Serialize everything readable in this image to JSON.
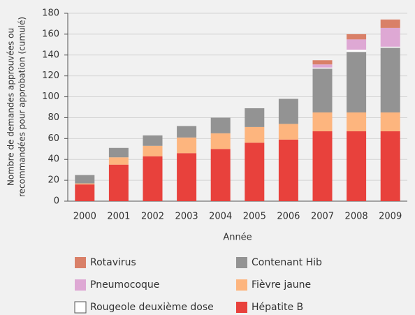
{
  "chart_data": {
    "type": "stacked_bar",
    "xlabel": "Année",
    "ylabel": [
      "Nombre de demandes approuvées ou",
      "recommandées pour approbation (cumulé)"
    ],
    "categories": [
      "2000",
      "2001",
      "2002",
      "2003",
      "2004",
      "2005",
      "2006",
      "2007",
      "2008",
      "2009"
    ],
    "series": [
      {
        "name": "Hépatite B",
        "color": "#e8413c",
        "values": [
          16,
          35,
          43,
          46,
          50,
          56,
          59,
          67,
          67,
          67
        ]
      },
      {
        "name": "Fièvre jaune",
        "color": "#fdb57e",
        "values": [
          1,
          7,
          10,
          15,
          15,
          15,
          15,
          18,
          18,
          18
        ]
      },
      {
        "name": "Contenant Hib",
        "color": "#939393",
        "values": [
          8,
          9,
          10,
          11,
          15,
          18,
          24,
          42,
          58,
          62
        ]
      },
      {
        "name": "Rougeole deuxième dose",
        "color": "#ffffff",
        "values": [
          0,
          0,
          0,
          0,
          0,
          0,
          0,
          1,
          2,
          1
        ]
      },
      {
        "name": "Pneumocoque",
        "color": "#dea8d4",
        "values": [
          0,
          0,
          0,
          0,
          0,
          0,
          0,
          3,
          10,
          18
        ]
      },
      {
        "name": "Rotavirus",
        "color": "#d98068",
        "values": [
          0,
          0,
          0,
          0,
          0,
          0,
          0,
          4,
          5,
          8
        ]
      }
    ],
    "ylim": [
      0,
      180
    ],
    "yticks": [
      0,
      20,
      40,
      60,
      80,
      100,
      120,
      140,
      160,
      180
    ],
    "grid": true
  }
}
